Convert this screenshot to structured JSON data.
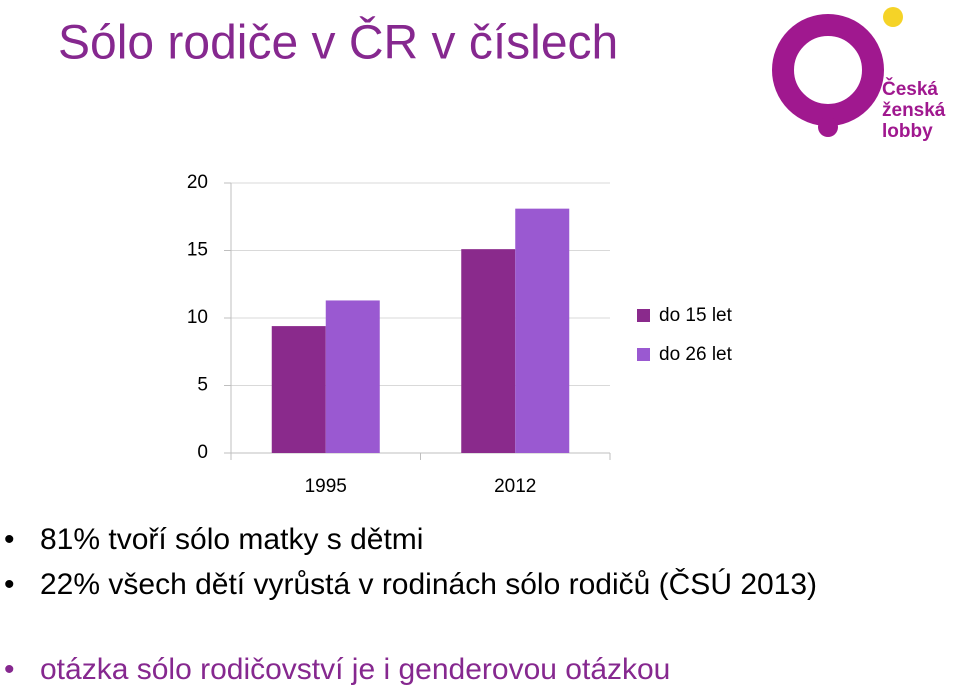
{
  "title": "Sólo rodiče v ČR v číslech",
  "logo": {
    "lines": [
      "Česká",
      "ženská",
      "lobby"
    ]
  },
  "chart_data": {
    "type": "bar",
    "categories": [
      "1995",
      "2012"
    ],
    "series": [
      {
        "name": "do 15 let",
        "color": "#8a2a8c",
        "values": [
          9.4,
          15.1
        ]
      },
      {
        "name": "do 26 let",
        "color": "#9a59d1",
        "values": [
          11.3,
          18.1
        ]
      }
    ],
    "ylim": [
      0,
      20
    ],
    "yticks": [
      0,
      5,
      10,
      15,
      20
    ],
    "grid": true,
    "legend": "right"
  },
  "bullets": [
    "81% tvoří sólo matky s dětmi",
    "22% všech dětí vyrůstá v rodinách sólo rodičů (ČSÚ 2013)",
    "otázka sólo rodičovství je i genderovou otázkou"
  ]
}
